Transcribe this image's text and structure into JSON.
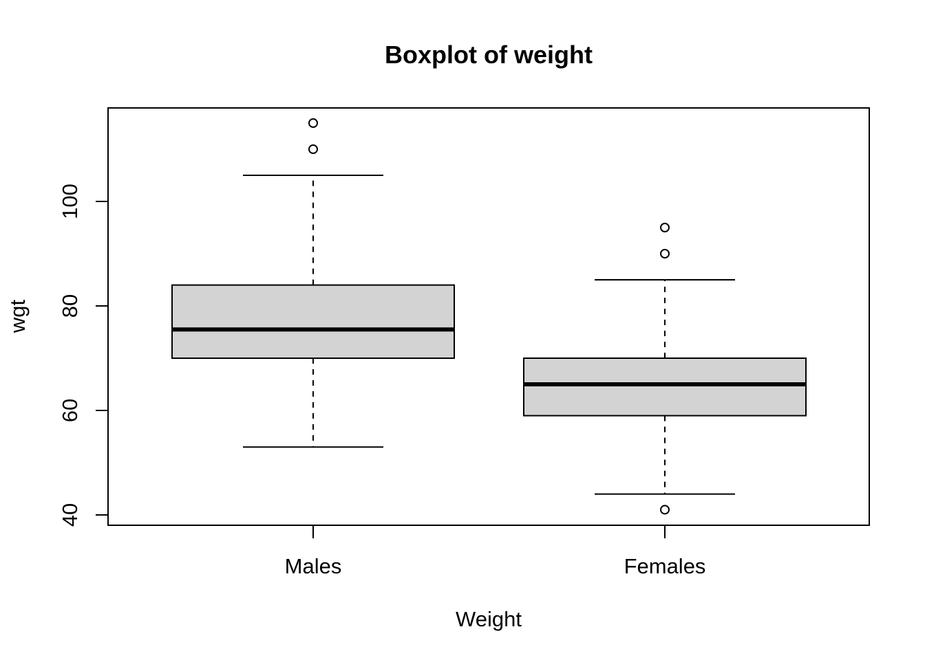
{
  "chart_data": {
    "type": "boxplot",
    "title": "Boxplot of weight",
    "xlabel": "Weight",
    "ylabel": "wgt",
    "ylim": [
      38,
      118
    ],
    "yticks": [
      40,
      60,
      80,
      100
    ],
    "categories": [
      "Males",
      "Females"
    ],
    "boxes": [
      {
        "category": "Males",
        "whisker_low": 53,
        "q1": 70,
        "median": 75.5,
        "q3": 84,
        "whisker_high": 105,
        "outliers": [
          110,
          115
        ]
      },
      {
        "category": "Females",
        "whisker_low": 44,
        "q1": 59,
        "median": 65,
        "q3": 70,
        "whisker_high": 85,
        "outliers": [
          41,
          90,
          95
        ]
      }
    ],
    "colors": {
      "box_fill": "#d3d3d3",
      "line": "#000000"
    }
  }
}
